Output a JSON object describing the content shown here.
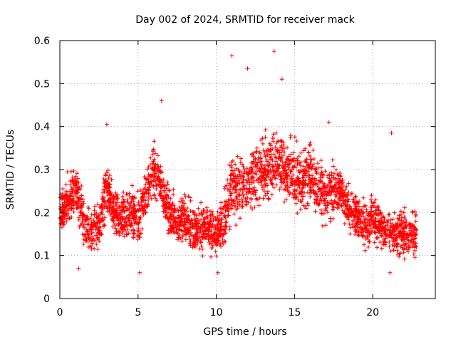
{
  "chart_data": {
    "type": "scatter",
    "title": "Day 002 of 2024, SRMTID for receiver mack",
    "xlabel": "GPS time / hours",
    "ylabel": "SRMTID / TECUs",
    "xlim": [
      0,
      24
    ],
    "ylim": [
      0,
      0.6
    ],
    "xticks": [
      0,
      5,
      10,
      15,
      20
    ],
    "xtick_labels": [
      "0",
      "5",
      "10",
      "15",
      "20"
    ],
    "yticks": [
      0,
      0.1,
      0.2,
      0.3,
      0.4,
      0.5,
      0.6
    ],
    "ytick_labels": [
      "0",
      "0.1",
      "0.2",
      "0.3",
      "0.4",
      "0.5",
      "0.6"
    ],
    "grid": true,
    "marker": "+",
    "color": "#ff0000",
    "data_range_hours": [
      0,
      22.8
    ],
    "trend": {
      "x": [
        0,
        0.5,
        1,
        1.5,
        2,
        2.5,
        3,
        3.5,
        4,
        4.5,
        5,
        5.5,
        6,
        6.5,
        7,
        7.5,
        8,
        8.5,
        9,
        9.5,
        10,
        10.5,
        11,
        11.5,
        12,
        12.5,
        13,
        13.5,
        14,
        14.5,
        15,
        15.5,
        16,
        16.5,
        17,
        17.5,
        18,
        18.5,
        19,
        19.5,
        20,
        20.5,
        21,
        21.5,
        22,
        22.8
      ],
      "y": [
        0.2,
        0.23,
        0.26,
        0.18,
        0.15,
        0.17,
        0.26,
        0.2,
        0.19,
        0.2,
        0.18,
        0.24,
        0.3,
        0.27,
        0.19,
        0.18,
        0.19,
        0.16,
        0.17,
        0.16,
        0.15,
        0.18,
        0.26,
        0.25,
        0.27,
        0.28,
        0.3,
        0.31,
        0.32,
        0.3,
        0.29,
        0.28,
        0.29,
        0.26,
        0.24,
        0.25,
        0.25,
        0.2,
        0.19,
        0.17,
        0.18,
        0.17,
        0.15,
        0.15,
        0.15,
        0.15
      ]
    },
    "notable_points": [
      {
        "x": 11.0,
        "y": 0.565
      },
      {
        "x": 13.7,
        "y": 0.575
      },
      {
        "x": 12.0,
        "y": 0.535
      },
      {
        "x": 14.2,
        "y": 0.51
      },
      {
        "x": 6.5,
        "y": 0.46
      },
      {
        "x": 3.0,
        "y": 0.405
      },
      {
        "x": 17.2,
        "y": 0.41
      },
      {
        "x": 21.2,
        "y": 0.385
      },
      {
        "x": 1.2,
        "y": 0.07
      },
      {
        "x": 10.1,
        "y": 0.06
      },
      {
        "x": 5.1,
        "y": 0.06
      },
      {
        "x": 21.1,
        "y": 0.06
      }
    ]
  }
}
